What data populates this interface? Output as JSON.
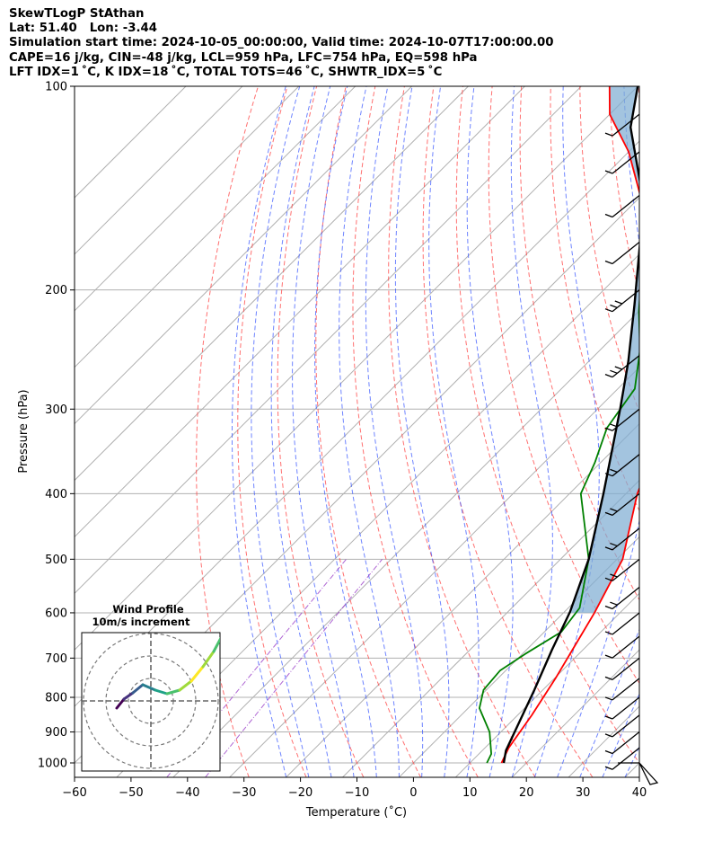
{
  "header": {
    "line1": "SkewTLogP StAthan",
    "line2": "Lat: 51.40   Lon: -3.44",
    "line3": "Simulation start time: 2024-10-05_00:00:00, Valid time: 2024-10-07T17:00:00.00",
    "line4": "CAPE=16 j/kg, CIN=-48 j/kg, LCL=959 hPa, LFC=754 hPa, EQ=598 hPa",
    "line5": "LFT IDX=1 ˚C, K IDX=18 ˚C, TOTAL TOTS=46 ˚C, SHWTR_IDX=5 ˚C"
  },
  "chart_data": {
    "type": "line",
    "title": "SkewTLogP StAthan",
    "xlabel": "Temperature (˚C)",
    "ylabel": "Pressure (hPa)",
    "x_ticks": [
      "−60",
      "−50",
      "−40",
      "−30",
      "−20",
      "−10",
      "0",
      "10",
      "20",
      "30",
      "40"
    ],
    "y_ticks": [
      "100",
      "200",
      "300",
      "400",
      "500",
      "600",
      "700",
      "800",
      "900",
      "1000"
    ],
    "xlim": [
      -60,
      40
    ],
    "ylim": [
      1050,
      100
    ],
    "y_scale": "log",
    "grid": true,
    "series": [
      {
        "role": "temperature",
        "color": "#ff0000",
        "points": [
          [
            15.6,
            1000
          ],
          [
            14.2,
            950
          ],
          [
            12.5,
            850
          ],
          [
            10.2,
            750
          ],
          [
            5.5,
            600
          ],
          [
            1.0,
            500
          ],
          [
            -8.0,
            400
          ],
          [
            -14.0,
            330
          ],
          [
            -16.5,
            290
          ],
          [
            -21.0,
            250
          ],
          [
            -33.0,
            210
          ],
          [
            -45.0,
            180
          ],
          [
            -58.0,
            150
          ],
          [
            -70.0,
            125
          ],
          [
            -80.0,
            110
          ],
          [
            -85.0,
            100
          ]
        ]
      },
      {
        "role": "dewpoint",
        "color": "#008000",
        "points": [
          [
            13.0,
            1000
          ],
          [
            12.2,
            970
          ],
          [
            8.0,
            900
          ],
          [
            2.0,
            830
          ],
          [
            -0.5,
            780
          ],
          [
            -1.0,
            730
          ],
          [
            0.5,
            690
          ],
          [
            3.0,
            640
          ],
          [
            2.0,
            590
          ],
          [
            -5.0,
            500
          ],
          [
            -18.0,
            400
          ],
          [
            -21.0,
            360
          ],
          [
            -25.0,
            320
          ],
          [
            -27.0,
            280
          ],
          [
            -33.0,
            245
          ],
          [
            -40.0,
            215
          ],
          [
            -46.0,
            190
          ],
          [
            -51.0,
            170
          ],
          [
            -56.0,
            150
          ],
          [
            -62.0,
            130
          ],
          [
            -67.0,
            110
          ],
          [
            -68.0,
            100
          ]
        ]
      },
      {
        "role": "parcel",
        "color": "#000000",
        "points": [
          [
            16.0,
            1000
          ],
          [
            14.2,
            959
          ],
          [
            11.5,
            870
          ],
          [
            8.5,
            780
          ],
          [
            4.5,
            680
          ],
          [
            1.0,
            598
          ],
          [
            -5.0,
            500
          ],
          [
            -14.0,
            400
          ],
          [
            -26.0,
            300
          ],
          [
            -33.0,
            255
          ],
          [
            -42.0,
            210
          ],
          [
            -52.0,
            170
          ],
          [
            -62.0,
            140
          ],
          [
            -74.0,
            115
          ],
          [
            -80.0,
            100
          ]
        ]
      }
    ],
    "wind_barbs": [
      {
        "p": 1000,
        "kind": "pennant"
      },
      {
        "p": 950,
        "kind": "one"
      },
      {
        "p": 900,
        "kind": "one"
      },
      {
        "p": 850,
        "kind": "one"
      },
      {
        "p": 800,
        "kind": "one"
      },
      {
        "p": 750,
        "kind": "one"
      },
      {
        "p": 700,
        "kind": "one"
      },
      {
        "p": 650,
        "kind": "one"
      },
      {
        "p": 600,
        "kind": "one"
      },
      {
        "p": 550,
        "kind": "two"
      },
      {
        "p": 500,
        "kind": "two"
      },
      {
        "p": 450,
        "kind": "two"
      },
      {
        "p": 400,
        "kind": "two"
      },
      {
        "p": 350,
        "kind": "two"
      },
      {
        "p": 300,
        "kind": "two"
      },
      {
        "p": 250,
        "kind": "three"
      },
      {
        "p": 200,
        "kind": "three"
      },
      {
        "p": 170,
        "kind": "one"
      },
      {
        "p": 145,
        "kind": "one"
      },
      {
        "p": 125,
        "kind": "one"
      },
      {
        "p": 110,
        "kind": "one"
      }
    ],
    "hodograph": {
      "title_line1": "Wind Profile",
      "title_line2": "10m/s increment",
      "ring_increment_ms": 10,
      "trace": [
        [
          -3.8,
          -0.8
        ],
        [
          -3.0,
          0.2
        ],
        [
          -2.0,
          0.9
        ],
        [
          -0.9,
          1.8
        ],
        [
          0.5,
          1.2
        ],
        [
          1.8,
          0.8
        ],
        [
          3.2,
          1.2
        ],
        [
          4.5,
          2.2
        ],
        [
          5.8,
          3.8
        ],
        [
          7.0,
          5.5
        ],
        [
          7.8,
          7.0
        ]
      ]
    }
  }
}
